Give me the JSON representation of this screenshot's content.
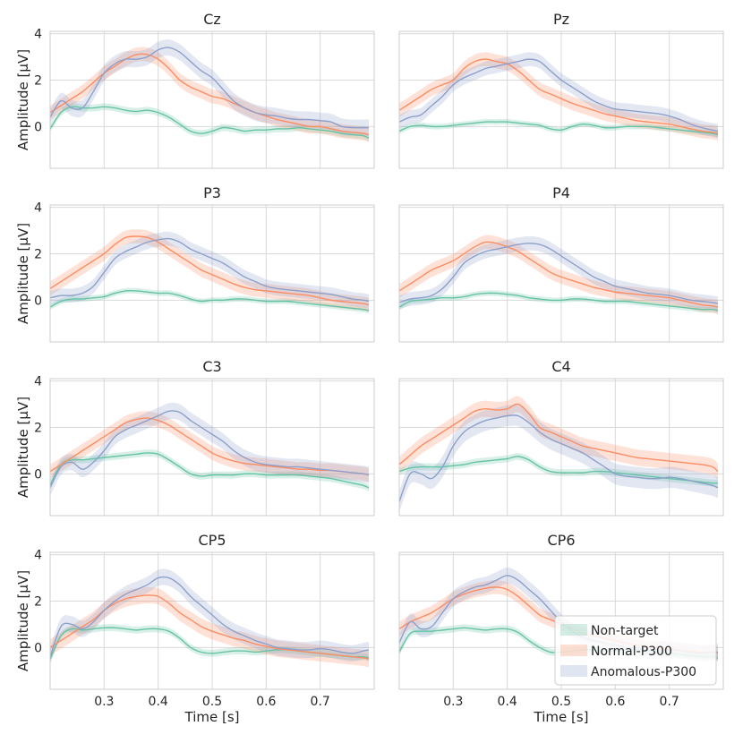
{
  "chart_data": {
    "type": "line",
    "xlabel": "Time [s]",
    "ylabel": "Amplitude [μV]",
    "xlim": [
      0.2,
      0.8
    ],
    "ylim": [
      -1.8,
      4.1
    ],
    "xticks": [
      0.3,
      0.4,
      0.5,
      0.6,
      0.7
    ],
    "xtick_labels": [
      "0.3",
      "0.4",
      "0.5",
      "0.6",
      "0.7"
    ],
    "yticks": [
      0,
      2,
      4
    ],
    "ytick_labels": [
      "0",
      "2",
      "4"
    ],
    "grid": true,
    "legend": {
      "location": "lower-right of bottom-right panel",
      "entries": [
        "Non-target",
        "Normal-P300",
        "Anomalous-P300"
      ]
    },
    "colors": {
      "Non-target": "#66c2a5",
      "Normal-P300": "#fc8d62",
      "Anomalous-P300": "#8da0cb"
    },
    "x": [
      0.2,
      0.22,
      0.24,
      0.26,
      0.28,
      0.3,
      0.32,
      0.34,
      0.36,
      0.38,
      0.4,
      0.42,
      0.44,
      0.46,
      0.48,
      0.5,
      0.52,
      0.54,
      0.56,
      0.58,
      0.6,
      0.62,
      0.64,
      0.66,
      0.68,
      0.7,
      0.72,
      0.74,
      0.76,
      0.78,
      0.79
    ],
    "panels": [
      {
        "title": "Cz",
        "series": [
          {
            "name": "Non-target",
            "values": [
              -0.1,
              0.6,
              0.85,
              0.8,
              0.8,
              0.85,
              0.8,
              0.7,
              0.65,
              0.7,
              0.6,
              0.4,
              0.1,
              -0.2,
              -0.3,
              -0.2,
              -0.05,
              -0.1,
              -0.2,
              -0.15,
              -0.15,
              -0.1,
              -0.1,
              -0.05,
              -0.1,
              -0.15,
              -0.2,
              -0.3,
              -0.35,
              -0.4,
              -0.5
            ],
            "ci": 0.15
          },
          {
            "name": "Normal-P300",
            "values": [
              0.6,
              0.9,
              1.2,
              1.5,
              1.9,
              2.3,
              2.6,
              2.9,
              3.1,
              3.1,
              2.9,
              2.5,
              2.0,
              1.7,
              1.5,
              1.3,
              1.2,
              1.0,
              0.8,
              0.6,
              0.45,
              0.3,
              0.2,
              0.1,
              0.0,
              0.0,
              -0.1,
              -0.2,
              -0.25,
              -0.3,
              -0.35
            ],
            "ci": 0.3
          },
          {
            "name": "Anomalous-P300",
            "values": [
              0.4,
              1.1,
              0.8,
              0.8,
              1.5,
              2.3,
              2.7,
              2.9,
              2.9,
              3.0,
              3.3,
              3.4,
              3.2,
              2.8,
              2.4,
              2.1,
              1.6,
              1.1,
              0.8,
              0.6,
              0.5,
              0.45,
              0.35,
              0.3,
              0.3,
              0.25,
              0.2,
              0.0,
              -0.05,
              -0.05,
              -0.05
            ],
            "ci": 0.35
          }
        ]
      },
      {
        "title": "Pz",
        "series": [
          {
            "name": "Non-target",
            "values": [
              -0.2,
              0.0,
              0.05,
              0.0,
              0.0,
              0.05,
              0.1,
              0.15,
              0.2,
              0.2,
              0.2,
              0.15,
              0.1,
              0.05,
              -0.1,
              -0.15,
              0.0,
              0.1,
              0.05,
              -0.05,
              -0.05,
              0.0,
              0.0,
              0.0,
              -0.05,
              -0.1,
              -0.15,
              -0.2,
              -0.25,
              -0.3,
              -0.35
            ],
            "ci": 0.12
          },
          {
            "name": "Normal-P300",
            "values": [
              0.7,
              1.0,
              1.3,
              1.6,
              1.8,
              2.0,
              2.5,
              2.8,
              2.9,
              2.8,
              2.7,
              2.4,
              2.0,
              1.6,
              1.4,
              1.2,
              1.0,
              0.85,
              0.7,
              0.55,
              0.45,
              0.35,
              0.25,
              0.2,
              0.15,
              0.1,
              0.0,
              -0.1,
              -0.2,
              -0.25,
              -0.3
            ],
            "ci": 0.3
          },
          {
            "name": "Anomalous-P300",
            "values": [
              0.2,
              0.4,
              0.5,
              0.9,
              1.3,
              1.8,
              2.1,
              2.3,
              2.5,
              2.6,
              2.7,
              2.8,
              2.9,
              2.8,
              2.4,
              2.0,
              1.7,
              1.4,
              1.1,
              0.9,
              0.75,
              0.7,
              0.65,
              0.6,
              0.55,
              0.45,
              0.3,
              0.1,
              -0.05,
              -0.15,
              -0.2
            ],
            "ci": 0.3
          }
        ]
      },
      {
        "title": "P3",
        "series": [
          {
            "name": "Non-target",
            "values": [
              -0.3,
              -0.05,
              0.05,
              0.05,
              0.1,
              0.15,
              0.3,
              0.4,
              0.4,
              0.35,
              0.3,
              0.3,
              0.2,
              0.05,
              -0.05,
              0.0,
              0.0,
              0.05,
              0.05,
              0.0,
              -0.05,
              -0.05,
              -0.05,
              -0.1,
              -0.15,
              -0.2,
              -0.25,
              -0.3,
              -0.35,
              -0.4,
              -0.45
            ],
            "ci": 0.12
          },
          {
            "name": "Normal-P300",
            "values": [
              0.5,
              0.8,
              1.1,
              1.4,
              1.7,
              2.0,
              2.4,
              2.7,
              2.75,
              2.7,
              2.5,
              2.2,
              1.9,
              1.6,
              1.3,
              1.1,
              0.9,
              0.7,
              0.55,
              0.45,
              0.4,
              0.35,
              0.3,
              0.25,
              0.2,
              0.1,
              0.0,
              -0.05,
              -0.1,
              -0.15,
              -0.2
            ],
            "ci": 0.3
          },
          {
            "name": "Anomalous-P300",
            "values": [
              0.1,
              0.2,
              0.2,
              0.3,
              0.6,
              1.2,
              1.8,
              2.1,
              2.3,
              2.5,
              2.6,
              2.65,
              2.5,
              2.2,
              2.0,
              1.8,
              1.6,
              1.3,
              1.0,
              0.8,
              0.6,
              0.5,
              0.45,
              0.4,
              0.35,
              0.3,
              0.25,
              0.15,
              0.05,
              0.0,
              -0.05
            ],
            "ci": 0.3
          }
        ]
      },
      {
        "title": "P4",
        "series": [
          {
            "name": "Non-target",
            "values": [
              -0.3,
              -0.05,
              0.0,
              0.05,
              0.1,
              0.1,
              0.15,
              0.25,
              0.3,
              0.3,
              0.25,
              0.2,
              0.1,
              0.05,
              0.0,
              0.0,
              0.05,
              0.05,
              0.0,
              -0.05,
              -0.05,
              -0.05,
              -0.1,
              -0.15,
              -0.2,
              -0.25,
              -0.3,
              -0.35,
              -0.4,
              -0.4,
              -0.45
            ],
            "ci": 0.12
          },
          {
            "name": "Normal-P300",
            "values": [
              0.4,
              0.7,
              1.0,
              1.3,
              1.5,
              1.7,
              2.0,
              2.3,
              2.5,
              2.45,
              2.3,
              2.1,
              1.8,
              1.5,
              1.2,
              1.0,
              0.85,
              0.7,
              0.55,
              0.45,
              0.35,
              0.3,
              0.25,
              0.2,
              0.15,
              0.1,
              0.0,
              -0.1,
              -0.2,
              -0.25,
              -0.3
            ],
            "ci": 0.3
          },
          {
            "name": "Anomalous-P300",
            "values": [
              -0.1,
              0.05,
              0.1,
              0.2,
              0.5,
              1.0,
              1.6,
              1.9,
              2.1,
              2.2,
              2.3,
              2.4,
              2.45,
              2.4,
              2.2,
              1.9,
              1.6,
              1.3,
              1.0,
              0.8,
              0.6,
              0.5,
              0.4,
              0.3,
              0.25,
              0.2,
              0.1,
              0.0,
              -0.05,
              -0.1,
              -0.15
            ],
            "ci": 0.3
          }
        ]
      },
      {
        "title": "C3",
        "series": [
          {
            "name": "Non-target",
            "values": [
              -0.5,
              0.4,
              0.6,
              0.6,
              0.65,
              0.7,
              0.75,
              0.8,
              0.85,
              0.9,
              0.85,
              0.6,
              0.3,
              0.0,
              -0.1,
              -0.05,
              -0.05,
              -0.05,
              0.0,
              0.0,
              -0.05,
              -0.05,
              -0.05,
              -0.05,
              -0.1,
              -0.15,
              -0.2,
              -0.3,
              -0.4,
              -0.5,
              -0.6
            ],
            "ci": 0.15
          },
          {
            "name": "Normal-P300",
            "values": [
              0.1,
              0.4,
              0.7,
              1.0,
              1.3,
              1.6,
              1.9,
              2.2,
              2.35,
              2.4,
              2.3,
              2.1,
              1.8,
              1.5,
              1.2,
              0.9,
              0.7,
              0.55,
              0.45,
              0.4,
              0.35,
              0.3,
              0.25,
              0.2,
              0.2,
              0.15,
              0.15,
              0.1,
              0.05,
              0.0,
              -0.05
            ],
            "ci": 0.3
          },
          {
            "name": "Anomalous-P300",
            "values": [
              -0.6,
              0.3,
              0.5,
              0.2,
              0.5,
              1.0,
              1.6,
              1.9,
              2.1,
              2.3,
              2.5,
              2.7,
              2.65,
              2.3,
              2.0,
              1.7,
              1.4,
              1.0,
              0.7,
              0.5,
              0.4,
              0.35,
              0.3,
              0.3,
              0.25,
              0.2,
              0.15,
              0.1,
              0.05,
              0.0,
              -0.05
            ],
            "ci": 0.35
          }
        ]
      },
      {
        "title": "C4",
        "series": [
          {
            "name": "Non-target",
            "values": [
              0.1,
              0.25,
              0.3,
              0.3,
              0.3,
              0.35,
              0.4,
              0.5,
              0.55,
              0.6,
              0.65,
              0.75,
              0.6,
              0.3,
              0.1,
              0.05,
              0.05,
              0.05,
              0.1,
              0.1,
              0.05,
              0.0,
              -0.05,
              -0.1,
              -0.15,
              -0.2,
              -0.25,
              -0.3,
              -0.35,
              -0.4,
              -0.4
            ],
            "ci": 0.15
          },
          {
            "name": "Normal-P300",
            "values": [
              0.4,
              0.8,
              1.2,
              1.5,
              1.8,
              2.1,
              2.4,
              2.7,
              2.8,
              2.75,
              2.8,
              3.0,
              2.6,
              2.0,
              1.8,
              1.6,
              1.4,
              1.2,
              1.1,
              1.0,
              0.9,
              0.8,
              0.7,
              0.65,
              0.6,
              0.55,
              0.5,
              0.45,
              0.4,
              0.3,
              0.1
            ],
            "ci": 0.35
          },
          {
            "name": "Anomalous-P300",
            "values": [
              -1.2,
              0.0,
              0.0,
              -0.2,
              0.3,
              1.2,
              1.8,
              2.1,
              2.3,
              2.4,
              2.5,
              2.5,
              2.2,
              1.8,
              1.5,
              1.3,
              1.1,
              0.9,
              0.6,
              0.3,
              0.0,
              -0.1,
              -0.15,
              -0.2,
              -0.2,
              -0.15,
              -0.2,
              -0.3,
              -0.4,
              -0.5,
              -0.6
            ],
            "ci": 0.45
          }
        ]
      },
      {
        "title": "CP5",
        "series": [
          {
            "name": "Non-target",
            "values": [
              -0.5,
              0.5,
              0.8,
              0.75,
              0.8,
              0.85,
              0.85,
              0.8,
              0.75,
              0.8,
              0.8,
              0.7,
              0.4,
              0.0,
              -0.2,
              -0.25,
              -0.2,
              -0.15,
              -0.15,
              -0.2,
              -0.15,
              -0.1,
              -0.1,
              -0.15,
              -0.2,
              -0.25,
              -0.3,
              -0.35,
              -0.4,
              -0.4,
              -0.45
            ],
            "ci": 0.15
          },
          {
            "name": "Normal-P300",
            "values": [
              0.0,
              0.3,
              0.6,
              0.9,
              1.2,
              1.6,
              1.9,
              2.1,
              2.2,
              2.25,
              2.2,
              1.9,
              1.5,
              1.2,
              0.9,
              0.7,
              0.55,
              0.4,
              0.3,
              0.15,
              0.05,
              -0.05,
              -0.1,
              -0.15,
              -0.2,
              -0.25,
              -0.3,
              -0.35,
              -0.4,
              -0.45,
              -0.5
            ],
            "ci": 0.35
          },
          {
            "name": "Anomalous-P300",
            "values": [
              -0.4,
              0.9,
              1.0,
              0.8,
              1.1,
              1.6,
              2.0,
              2.3,
              2.5,
              2.7,
              3.0,
              3.0,
              2.7,
              2.2,
              1.8,
              1.4,
              1.0,
              0.7,
              0.5,
              0.3,
              0.15,
              0.0,
              -0.05,
              -0.1,
              -0.1,
              -0.05,
              -0.1,
              -0.2,
              -0.25,
              -0.15,
              -0.1
            ],
            "ci": 0.35
          }
        ]
      },
      {
        "title": "CP6",
        "series": [
          {
            "name": "Non-target",
            "values": [
              -0.2,
              0.6,
              0.7,
              0.7,
              0.75,
              0.8,
              0.85,
              0.8,
              0.75,
              0.8,
              0.8,
              0.65,
              0.3,
              0.0,
              -0.2,
              -0.2,
              -0.15,
              -0.1,
              -0.1,
              -0.15,
              -0.15,
              -0.1,
              -0.1,
              -0.15,
              -0.2,
              -0.25,
              -0.3,
              -0.35,
              -0.4,
              -0.4,
              -0.45
            ],
            "ci": 0.15
          },
          {
            "name": "Normal-P300",
            "values": [
              0.8,
              1.1,
              1.3,
              1.5,
              1.8,
              2.1,
              2.3,
              2.45,
              2.55,
              2.6,
              2.5,
              2.2,
              1.8,
              1.4,
              1.2,
              1.0,
              0.8,
              0.6,
              0.5,
              0.4,
              0.3,
              0.2,
              0.1,
              0.05,
              0.0,
              -0.05,
              -0.1,
              -0.15,
              -0.2,
              -0.2,
              -0.25
            ],
            "ci": 0.3
          },
          {
            "name": "Anomalous-P300",
            "values": [
              0.2,
              1.1,
              0.8,
              0.9,
              1.5,
              2.1,
              2.4,
              2.6,
              2.7,
              2.9,
              3.1,
              2.9,
              2.5,
              2.1,
              1.6,
              1.1,
              0.7,
              0.45,
              0.3,
              0.2,
              0.1,
              0.0,
              -0.05,
              -0.1,
              -0.1,
              -0.1,
              -0.15,
              -0.2,
              -0.25,
              -0.2,
              -0.2
            ],
            "ci": 0.35
          }
        ]
      }
    ]
  }
}
